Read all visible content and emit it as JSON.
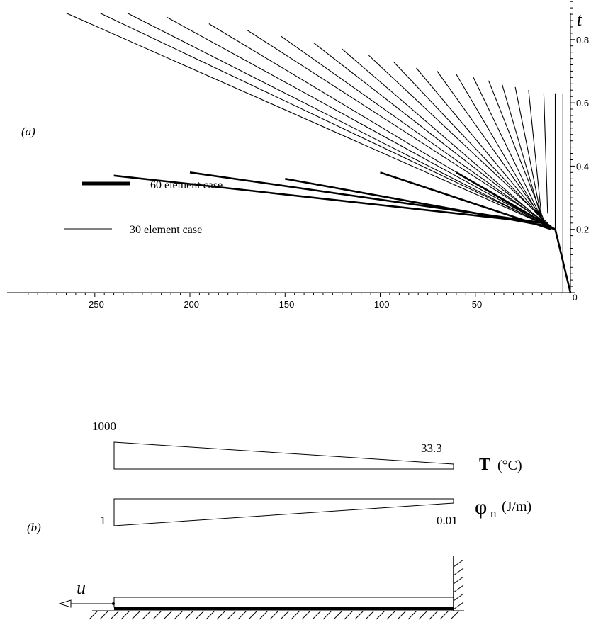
{
  "chart_data": [
    {
      "type": "line",
      "panel_label": "(a)",
      "ylabel": "t",
      "xlim": [
        -290,
        0
      ],
      "ylim": [
        0,
        0.95
      ],
      "xticks": [
        -250,
        -200,
        -150,
        -100,
        -50
      ],
      "xtick_labels": [
        "-250",
        "-200",
        "-150",
        "-100",
        "-50"
      ],
      "yticks": [
        0.2,
        0.4,
        0.6,
        0.8
      ],
      "ytick_labels": [
        "0.2",
        "0.4",
        "0.6",
        "0.8"
      ],
      "origin_label": "0",
      "legend": [
        {
          "label": "60 element case",
          "weight": "thick"
        },
        {
          "label": "30 element case",
          "weight": "thin"
        }
      ],
      "series": [
        {
          "name": "60 element case",
          "characteristics": [
            {
              "x": [
                -60,
                -8
              ],
              "y": [
                0.38,
                0.2
              ]
            },
            {
              "x": [
                -100,
                -10
              ],
              "y": [
                0.38,
                0.2
              ]
            },
            {
              "x": [
                -150,
                -12
              ],
              "y": [
                0.36,
                0.21
              ]
            },
            {
              "x": [
                -200,
                -14
              ],
              "y": [
                0.38,
                0.22
              ]
            },
            {
              "x": [
                -240,
                -14
              ],
              "y": [
                0.37,
                0.22
              ]
            }
          ]
        },
        {
          "name": "30 element case",
          "characteristics": [
            {
              "x": [
                -290,
                -8
              ],
              "y": [
                0.95,
                0.2
              ]
            },
            {
              "x": [
                -260,
                -8
              ],
              "y": [
                0.92,
                0.2
              ]
            },
            {
              "x": [
                -235,
                -9
              ],
              "y": [
                0.89,
                0.2
              ]
            },
            {
              "x": [
                -212,
                -9
              ],
              "y": [
                0.87,
                0.2
              ]
            },
            {
              "x": [
                -190,
                -10
              ],
              "y": [
                0.85,
                0.2
              ]
            },
            {
              "x": [
                -170,
                -10
              ],
              "y": [
                0.83,
                0.21
              ]
            },
            {
              "x": [
                -152,
                -11
              ],
              "y": [
                0.81,
                0.21
              ]
            },
            {
              "x": [
                -135,
                -11
              ],
              "y": [
                0.79,
                0.21
              ]
            },
            {
              "x": [
                -120,
                -12
              ],
              "y": [
                0.77,
                0.21
              ]
            },
            {
              "x": [
                -106,
                -12
              ],
              "y": [
                0.75,
                0.22
              ]
            },
            {
              "x": [
                -93,
                -13
              ],
              "y": [
                0.73,
                0.22
              ]
            },
            {
              "x": [
                -81,
                -13
              ],
              "y": [
                0.71,
                0.22
              ]
            },
            {
              "x": [
                -70,
                -13
              ],
              "y": [
                0.7,
                0.22
              ]
            },
            {
              "x": [
                -60,
                -14
              ],
              "y": [
                0.69,
                0.22
              ]
            },
            {
              "x": [
                -51,
                -14
              ],
              "y": [
                0.68,
                0.22
              ]
            },
            {
              "x": [
                -43,
                -14
              ],
              "y": [
                0.67,
                0.23
              ]
            },
            {
              "x": [
                -36,
                -15
              ],
              "y": [
                0.66,
                0.23
              ]
            },
            {
              "x": [
                -29,
                -15
              ],
              "y": [
                0.65,
                0.23
              ]
            },
            {
              "x": [
                -22,
                -15
              ],
              "y": [
                0.64,
                0.23
              ]
            },
            {
              "x": [
                -14,
                -12
              ],
              "y": [
                0.63,
                0.25
              ]
            },
            {
              "x": [
                -8,
                -8
              ],
              "y": [
                0.63,
                0.2
              ]
            },
            {
              "x": [
                -4,
                -4
              ],
              "y": [
                0.63,
                0.0
              ]
            }
          ]
        }
      ]
    },
    {
      "type": "other",
      "panel_label": "(b)",
      "temperature": {
        "left": "1000",
        "right": "33.3",
        "label_bold": "T",
        "label_rest": "(°C)"
      },
      "fluence": {
        "left": "1",
        "right": "0.01",
        "label_symbol": "φ",
        "label_sub": "n",
        "label_rest": "(J/m)"
      },
      "displacement_label": "u"
    }
  ]
}
